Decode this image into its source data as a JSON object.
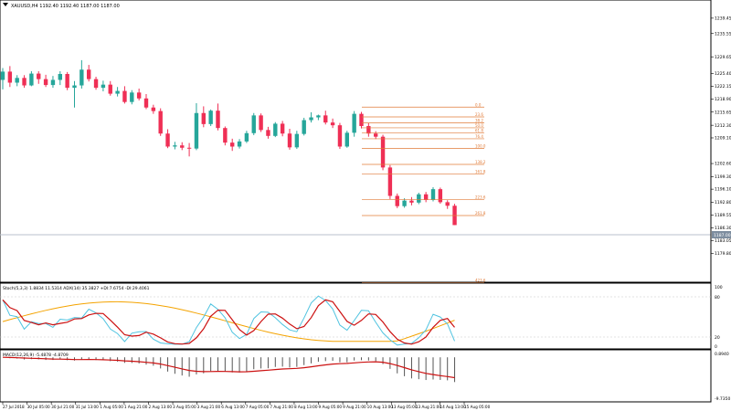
{
  "header": {
    "symbol_line": "XAUUSD,H4  1192.40 1192.40 1187.00 1187.00"
  },
  "price_axis": {
    "labels": [
      "1239.45",
      "1235.55",
      "1229.65",
      "1225.40",
      "1222.15",
      "1218.90",
      "1215.65",
      "1212.30",
      "1209.10",
      "1202.60",
      "1199.30",
      "1196.10",
      "1192.80",
      "1189.55",
      "1186.30",
      "1183.05",
      "1179.80"
    ],
    "current_price_label": "1187.00",
    "current_price_color": "#7d8d9f"
  },
  "fibonacci": {
    "color": "#e07b39",
    "levels": [
      "0.0",
      "23.6",
      "38.2",
      "50.0",
      "61.8",
      "76.4",
      "100.0",
      "138.2",
      "161.8",
      "223.6",
      "261.8",
      "423.6"
    ]
  },
  "indicators": {
    "stoch_label": "Stoch(5,3,3) 1.8834 11.5314 ADX(14) 35.3827 +DI:7.6754 -DI:29.4061",
    "stoch_axis": [
      "100",
      "80",
      "20",
      "0"
    ],
    "macd_label": "MACD(12,26,9) -5.4878 -4.8709",
    "macd_axis": [
      "0.8940",
      "-9.7350"
    ]
  },
  "time_axis": {
    "labels": [
      "27 Jul 2018",
      "30 Jul 05:00",
      "30 Jul 21:00",
      "31 Jul 13:00",
      "1 Aug 05:00",
      "1 Aug 21:00",
      "2 Aug 13:00",
      "3 Aug 05:00",
      "3 Aug 21:00",
      "6 Aug 13:00",
      "7 Aug 05:00",
      "7 Aug 21:00",
      "8 Aug 13:00",
      "9 Aug 05:00",
      "9 Aug 21:00",
      "10 Aug 13:00",
      "13 Aug 05:00",
      "13 Aug 21:00",
      "14 Aug 13:00",
      "15 Aug 05:00"
    ]
  },
  "colors": {
    "bull": "#26a69a",
    "bear": "#ef2f55",
    "stoch_main": "#4fc3e0",
    "stoch_signal": "#cc1111",
    "adx": "#f4a300",
    "macd_hist": "#555555",
    "macd_signal": "#cc1111"
  },
  "chart_data": {
    "type": "candlestick",
    "symbol": "XAUUSD",
    "timeframe": "H4",
    "ylim": [
      1174.6,
      1242.2
    ],
    "candles": [
      [
        1223.8,
        1226.8,
        1221.4,
        1225.9
      ],
      [
        1225.9,
        1227.3,
        1222.0,
        1223.1
      ],
      [
        1223.1,
        1225.0,
        1222.2,
        1224.3
      ],
      [
        1224.3,
        1225.0,
        1221.8,
        1222.4
      ],
      [
        1222.4,
        1226.0,
        1222.2,
        1225.4
      ],
      [
        1225.4,
        1226.0,
        1222.8,
        1224.0
      ],
      [
        1224.0,
        1225.1,
        1222.0,
        1222.5
      ],
      [
        1222.5,
        1224.8,
        1221.8,
        1223.8
      ],
      [
        1223.8,
        1226.0,
        1222.5,
        1225.3
      ],
      [
        1225.3,
        1225.8,
        1221.2,
        1221.8
      ],
      [
        1221.8,
        1223.5,
        1216.8,
        1222.4
      ],
      [
        1222.4,
        1228.8,
        1221.6,
        1226.4
      ],
      [
        1226.4,
        1227.6,
        1223.4,
        1224.0
      ],
      [
        1224.0,
        1224.6,
        1221.3,
        1221.8
      ],
      [
        1221.8,
        1223.6,
        1220.9,
        1222.6
      ],
      [
        1222.6,
        1223.5,
        1219.8,
        1220.3
      ],
      [
        1220.3,
        1222.0,
        1219.6,
        1221.0
      ],
      [
        1221.0,
        1222.2,
        1217.8,
        1218.2
      ],
      [
        1218.2,
        1221.2,
        1217.6,
        1220.6
      ],
      [
        1220.6,
        1221.6,
        1218.6,
        1219.1
      ],
      [
        1219.1,
        1220.2,
        1216.4,
        1216.8
      ],
      [
        1216.8,
        1217.5,
        1215.2,
        1215.9
      ],
      [
        1215.9,
        1216.6,
        1209.6,
        1210.2
      ],
      [
        1210.2,
        1211.3,
        1206.5,
        1206.9
      ],
      [
        1206.9,
        1208.1,
        1206.2,
        1207.2
      ],
      [
        1207.2,
        1208.0,
        1206.0,
        1206.6
      ],
      [
        1206.6,
        1207.8,
        1204.4,
        1206.4
      ],
      [
        1206.4,
        1217.9,
        1206.0,
        1215.4
      ],
      [
        1215.4,
        1217.1,
        1211.8,
        1212.6
      ],
      [
        1212.6,
        1216.3,
        1212.1,
        1216.0
      ],
      [
        1216.0,
        1217.8,
        1211.0,
        1211.6
      ],
      [
        1211.6,
        1212.0,
        1207.2,
        1207.9
      ],
      [
        1207.9,
        1208.9,
        1205.8,
        1206.9
      ],
      [
        1206.9,
        1208.8,
        1206.4,
        1208.2
      ],
      [
        1208.2,
        1210.9,
        1207.8,
        1210.3
      ],
      [
        1210.3,
        1215.4,
        1209.8,
        1214.8
      ],
      [
        1214.8,
        1215.3,
        1210.6,
        1211.1
      ],
      [
        1211.1,
        1211.9,
        1208.9,
        1209.6
      ],
      [
        1209.6,
        1213.1,
        1209.3,
        1212.7
      ],
      [
        1212.7,
        1213.4,
        1209.5,
        1210.2
      ],
      [
        1210.2,
        1211.4,
        1206.1,
        1206.7
      ],
      [
        1206.7,
        1210.9,
        1206.3,
        1210.1
      ],
      [
        1210.1,
        1214.2,
        1209.7,
        1213.6
      ],
      [
        1213.6,
        1215.6,
        1213.0,
        1214.3
      ],
      [
        1214.3,
        1215.0,
        1213.6,
        1214.8
      ],
      [
        1214.8,
        1216.0,
        1212.5,
        1213.0
      ],
      [
        1213.0,
        1214.0,
        1211.6,
        1212.3
      ],
      [
        1212.3,
        1212.9,
        1206.3,
        1206.9
      ],
      [
        1206.9,
        1210.9,
        1206.6,
        1210.4
      ],
      [
        1210.4,
        1215.9,
        1209.4,
        1215.2
      ],
      [
        1215.2,
        1215.7,
        1211.5,
        1212.1
      ],
      [
        1212.1,
        1212.9,
        1209.4,
        1210.2
      ],
      [
        1210.2,
        1210.8,
        1208.8,
        1209.4
      ],
      [
        1209.4,
        1209.9,
        1200.9,
        1201.6
      ],
      [
        1201.6,
        1202.2,
        1193.6,
        1194.4
      ],
      [
        1194.4,
        1195.0,
        1191.3,
        1191.8
      ],
      [
        1191.8,
        1193.8,
        1191.4,
        1193.2
      ],
      [
        1193.2,
        1194.1,
        1192.0,
        1192.7
      ],
      [
        1192.7,
        1195.2,
        1192.3,
        1194.8
      ],
      [
        1194.8,
        1195.4,
        1192.8,
        1193.4
      ],
      [
        1193.4,
        1196.6,
        1193.0,
        1196.1
      ],
      [
        1196.1,
        1196.5,
        1192.4,
        1192.8
      ],
      [
        1192.8,
        1193.3,
        1191.1,
        1191.9
      ],
      [
        1191.9,
        1192.4,
        1187.0,
        1187.0
      ]
    ]
  }
}
